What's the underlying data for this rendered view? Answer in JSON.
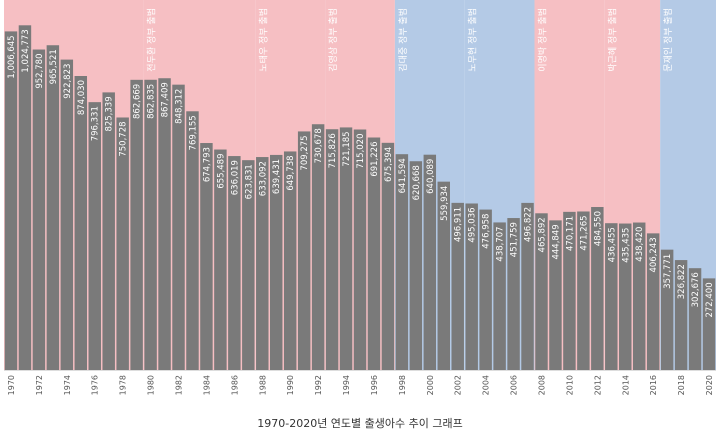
{
  "chart_data": {
    "type": "bar",
    "title": "1970-2020년 연도별 출생아수 추이 그래프",
    "categories": [
      "1970",
      "1971",
      "1972",
      "1973",
      "1974",
      "1975",
      "1976",
      "1977",
      "1978",
      "1979",
      "1980",
      "1981",
      "1982",
      "1983",
      "1984",
      "1985",
      "1986",
      "1987",
      "1988",
      "1989",
      "1990",
      "1991",
      "1992",
      "1993",
      "1994",
      "1995",
      "1996",
      "1997",
      "1998",
      "1999",
      "2000",
      "2001",
      "2002",
      "2003",
      "2004",
      "2005",
      "2006",
      "2007",
      "2008",
      "2009",
      "2010",
      "2011",
      "2012",
      "2013",
      "2014",
      "2015",
      "2016",
      "2017",
      "2018",
      "2019",
      "2020"
    ],
    "values": [
      1006645,
      1024773,
      952780,
      965521,
      922823,
      874030,
      796331,
      825339,
      750728,
      862669,
      862835,
      867409,
      848312,
      769155,
      674793,
      655489,
      636019,
      623831,
      633092,
      639431,
      649738,
      709275,
      730678,
      715826,
      721185,
      715020,
      691226,
      675394,
      641594,
      620668,
      640089,
      559934,
      496911,
      495036,
      476958,
      438707,
      451759,
      496822,
      465892,
      444849,
      470171,
      471265,
      484550,
      436455,
      435435,
      438420,
      406243,
      357771,
      326822,
      302676,
      272400
    ],
    "value_labels": [
      "1,006,645",
      "1,024,773",
      "952,780",
      "965,521",
      "922,823",
      "874,030",
      "796,331",
      "825,339",
      "750,728",
      "862,669",
      "862,835",
      "867,409",
      "848,312",
      "769,155",
      "674,793",
      "655,489",
      "636,019",
      "623,831",
      "633,092",
      "639,431",
      "649,738",
      "709,275",
      "730,678",
      "715,826",
      "721,185",
      "715,020",
      "691,226",
      "675,394",
      "641,594",
      "620,668",
      "640,089",
      "559,934",
      "496,911",
      "495,036",
      "476,958",
      "438,707",
      "451,759",
      "496,822",
      "465,892",
      "444,849",
      "470,171",
      "471,265",
      "484,550",
      "436,455",
      "435,435",
      "438,420",
      "406,243",
      "357,771",
      "326,822",
      "302,676",
      "272,400"
    ],
    "x_tick_labels": [
      "1970",
      "1972",
      "1974",
      "1976",
      "1978",
      "1980",
      "1982",
      "1984",
      "1986",
      "1988",
      "1990",
      "1992",
      "1994",
      "1996",
      "1998",
      "2000",
      "2002",
      "2004",
      "2006",
      "2008",
      "2010",
      "2012",
      "2014",
      "2016",
      "2018",
      "2020"
    ],
    "ylim": [
      0,
      1100000
    ],
    "bar_color": "#7a7a7a",
    "eras": [
      {
        "start": "1970",
        "end": "1979",
        "label": "",
        "color": "#f6bfc3"
      },
      {
        "start": "1980",
        "end": "1987",
        "label": "전두환 정부 출범",
        "color": "#f6bfc3"
      },
      {
        "start": "1988",
        "end": "1992",
        "label": "노태우 정부 출범",
        "color": "#f6bfc3"
      },
      {
        "start": "1993",
        "end": "1997",
        "label": "김영삼 정부 출범",
        "color": "#f6bfc3"
      },
      {
        "start": "1998",
        "end": "2002",
        "label": "김대중 정부 출범",
        "color": "#b4cae6"
      },
      {
        "start": "2003",
        "end": "2007",
        "label": "노무현 정부 출범",
        "color": "#b4cae6"
      },
      {
        "start": "2008",
        "end": "2012",
        "label": "이명박 정부 출범",
        "color": "#f6bfc3"
      },
      {
        "start": "2013",
        "end": "2016",
        "label": "박근혜 정부 출범",
        "color": "#f6bfc3"
      },
      {
        "start": "2017",
        "end": "2020",
        "label": "문재인 정부 출범",
        "color": "#b4cae6"
      }
    ]
  }
}
